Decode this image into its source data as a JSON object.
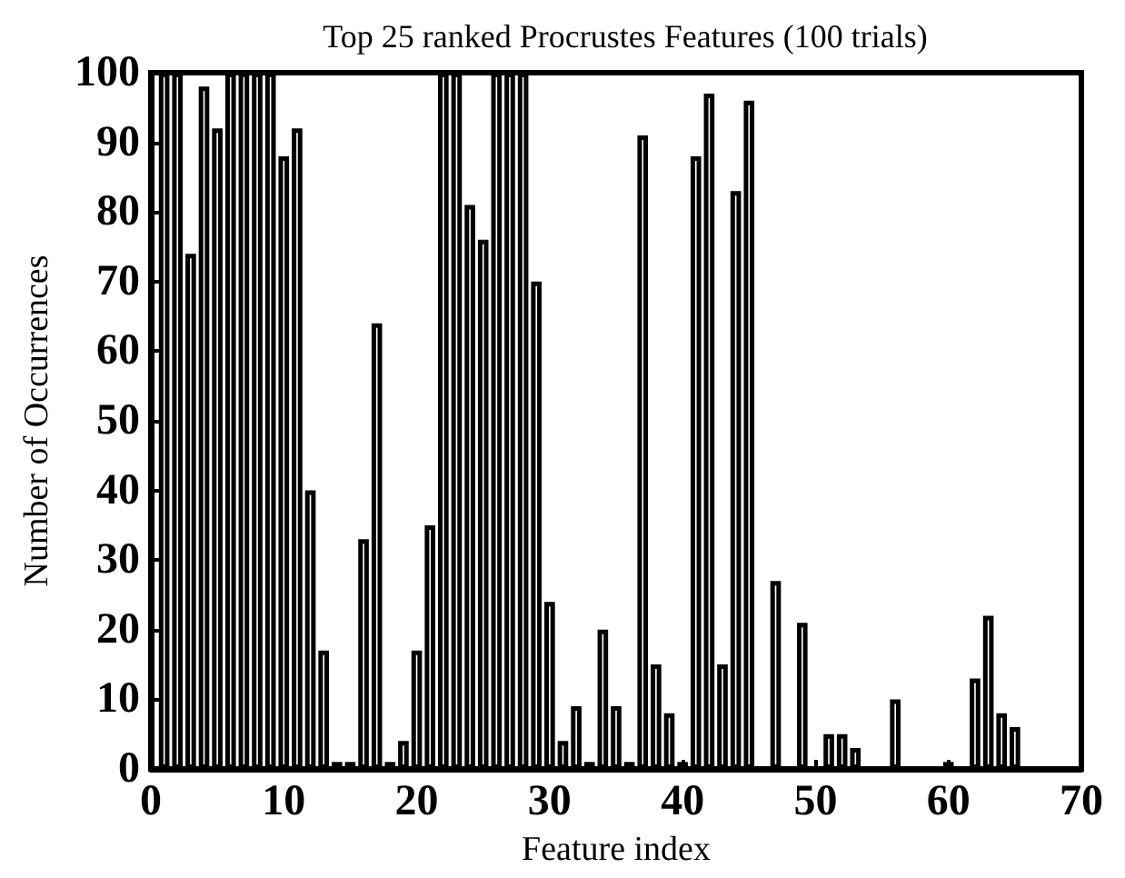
{
  "chart_data": {
    "type": "bar",
    "title": "Top 25 ranked Procrustes Features (100 trials)",
    "xlabel": "Feature index",
    "ylabel": "Number of Occurrences",
    "x": [
      1,
      2,
      3,
      4,
      5,
      6,
      7,
      8,
      9,
      10,
      11,
      12,
      13,
      14,
      15,
      16,
      17,
      18,
      19,
      20,
      21,
      22,
      23,
      24,
      25,
      26,
      27,
      28,
      29,
      30,
      31,
      32,
      33,
      34,
      35,
      36,
      37,
      38,
      39,
      40,
      41,
      42,
      43,
      44,
      45,
      46,
      47,
      48,
      49,
      50,
      51,
      52,
      53,
      54,
      55,
      56,
      57,
      58,
      59,
      60,
      61,
      62,
      63,
      64,
      65
    ],
    "values": [
      100,
      100,
      74,
      98,
      92,
      100,
      100,
      100,
      100,
      88,
      92,
      40,
      17,
      1,
      1,
      33,
      64,
      1,
      4,
      17,
      35,
      100,
      100,
      81,
      76,
      100,
      100,
      100,
      70,
      24,
      4,
      9,
      1,
      20,
      9,
      1,
      91,
      15,
      8,
      1,
      88,
      97,
      15,
      83,
      96,
      0,
      27,
      0,
      21,
      0,
      5,
      5,
      3,
      0,
      0,
      10,
      0,
      0,
      0,
      1,
      0,
      13,
      22,
      8,
      6
    ],
    "color": "#000000",
    "xlim": [
      0,
      70
    ],
    "xticks": [
      0,
      10,
      20,
      30,
      40,
      50,
      60,
      70
    ],
    "ylim": [
      0,
      100
    ],
    "yticks": [
      0,
      10,
      20,
      30,
      40,
      50,
      60,
      70,
      80,
      90,
      100
    ],
    "grid": false
  }
}
